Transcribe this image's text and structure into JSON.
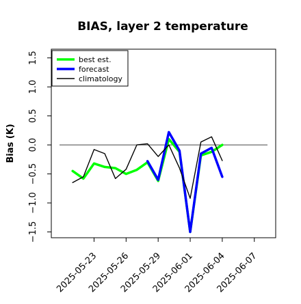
{
  "chart_data": {
    "type": "line",
    "title": "BIAS, layer 2 temperature",
    "xlabel": "",
    "ylabel": "Bias (K)",
    "x_tick_labels": [
      "2025-05-23",
      "2025-05-26",
      "2025-05-29",
      "2025-06-01",
      "2025-06-04",
      "2025-06-07"
    ],
    "highlighted_x_tick_label": "2025-05-29",
    "highlight_color": "#008000",
    "y_tick_labels": [
      "−1.5",
      "−1.0",
      "−0.5",
      "0.0",
      "0.5",
      "1.0",
      "1.5"
    ],
    "xlim": [
      "2025-05-19",
      "2025-06-09"
    ],
    "ylim": [
      -1.6,
      1.65
    ],
    "reference_line": 0.0,
    "legend": {
      "placement": "top-left"
    },
    "grid": false,
    "dates": [
      "2025-05-21",
      "2025-05-22",
      "2025-05-23",
      "2025-05-24",
      "2025-05-25",
      "2025-05-26",
      "2025-05-27",
      "2025-05-28",
      "2025-05-29",
      "2025-05-30",
      "2025-05-31",
      "2025-06-01",
      "2025-06-02",
      "2025-06-03",
      "2025-06-04",
      "2025-06-05"
    ],
    "series": [
      {
        "name": "best est.",
        "color": "#00ff00",
        "values": [
          -0.45,
          -0.58,
          -0.32,
          -0.38,
          -0.4,
          -0.5,
          -0.43,
          -0.3,
          -0.62,
          0.1,
          -0.12,
          -1.5,
          -0.18,
          -0.12,
          0.0,
          null
        ]
      },
      {
        "name": "forecast",
        "color": "#0000ff",
        "values": [
          null,
          null,
          null,
          null,
          null,
          null,
          null,
          -0.28,
          -0.6,
          0.22,
          -0.1,
          -1.5,
          -0.15,
          -0.05,
          -0.55,
          null
        ]
      },
      {
        "name": "climatology",
        "color": "#000000",
        "values": [
          -0.65,
          -0.55,
          -0.08,
          -0.15,
          -0.58,
          -0.42,
          0.0,
          0.02,
          -0.2,
          0.0,
          -0.4,
          -0.92,
          0.05,
          0.14,
          -0.27,
          null
        ]
      }
    ]
  }
}
